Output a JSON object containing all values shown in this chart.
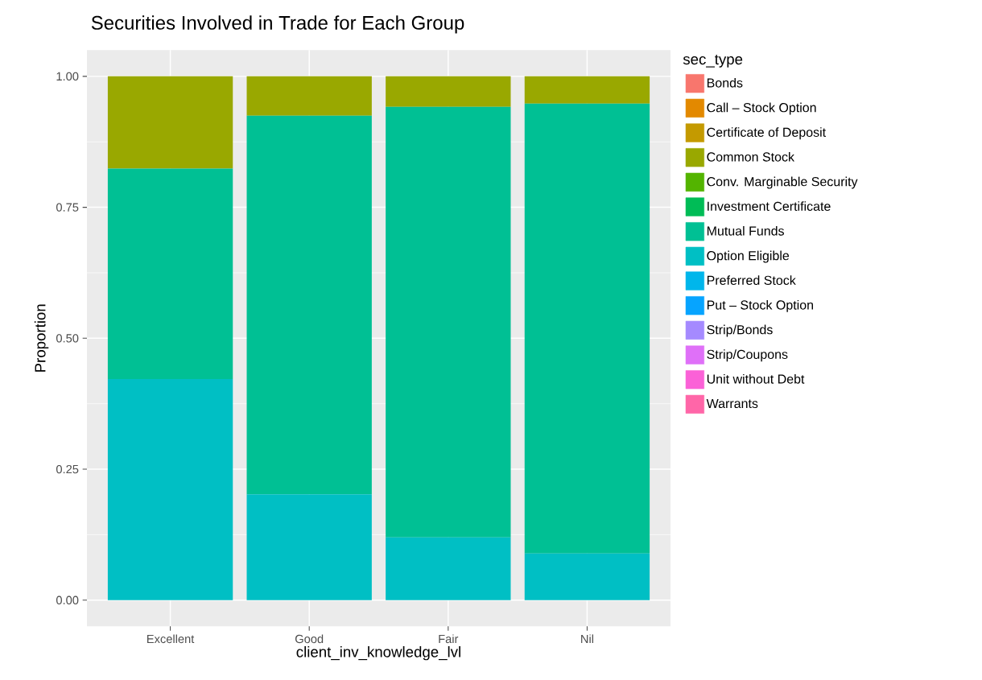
{
  "chart_data": {
    "type": "bar",
    "stacked": true,
    "title": "Securities Involved in Trade for Each Group",
    "xlabel": "client_inv_knowledge_lvl",
    "ylabel": "Proportion",
    "legend_title": "sec_type",
    "legend": "right",
    "grid": true,
    "categories": [
      "Excellent",
      "Good",
      "Fair",
      "Nil"
    ],
    "ylim": [
      -0.05,
      1.05
    ],
    "yticks": [
      {
        "value": 0,
        "label": "0.00"
      },
      {
        "value": 0.25,
        "label": "0.25"
      },
      {
        "value": 0.5,
        "label": "0.50"
      },
      {
        "value": 0.75,
        "label": "0.75"
      },
      {
        "value": 1,
        "label": "1.00"
      }
    ],
    "series": [
      {
        "name": "Warrants",
        "color": "#ff66a8",
        "values": [
          0,
          0,
          0,
          0
        ]
      },
      {
        "name": "Unit without Debt",
        "color": "#fb61d7",
        "values": [
          0,
          0,
          0,
          0
        ]
      },
      {
        "name": "Strip/Coupons",
        "color": "#df70f8",
        "values": [
          0,
          0,
          0,
          0
        ]
      },
      {
        "name": "Strip/Bonds",
        "color": "#a58aff",
        "values": [
          0,
          0,
          0,
          0
        ]
      },
      {
        "name": "Put – Stock Option",
        "color": "#06a4ff",
        "values": [
          0,
          0,
          0,
          0
        ]
      },
      {
        "name": "Preferred Stock",
        "color": "#00b6eb",
        "values": [
          0,
          0,
          0,
          0
        ]
      },
      {
        "name": "Option Eligible",
        "color": "#00bfc4",
        "values": [
          0.422,
          0.202,
          0.12,
          0.089
        ]
      },
      {
        "name": "Mutual Funds",
        "color": "#00c094",
        "values": [
          0.402,
          0.723,
          0.822,
          0.859
        ]
      },
      {
        "name": "Investment Certificate",
        "color": "#00bc56",
        "values": [
          0,
          0,
          0,
          0
        ]
      },
      {
        "name": "Conv. Marginable Security",
        "color": "#53b400",
        "values": [
          0,
          0,
          0,
          0
        ]
      },
      {
        "name": "Common Stock",
        "color": "#99a800",
        "values": [
          0.176,
          0.075,
          0.058,
          0.052
        ]
      },
      {
        "name": "Certificate of Deposit",
        "color": "#c49a00",
        "values": [
          0,
          0,
          0,
          0
        ]
      },
      {
        "name": "Call – Stock Option",
        "color": "#e38900",
        "values": [
          0,
          0,
          0,
          0
        ]
      },
      {
        "name": "Bonds",
        "color": "#f8766d",
        "values": [
          0,
          0,
          0,
          0
        ]
      }
    ]
  }
}
